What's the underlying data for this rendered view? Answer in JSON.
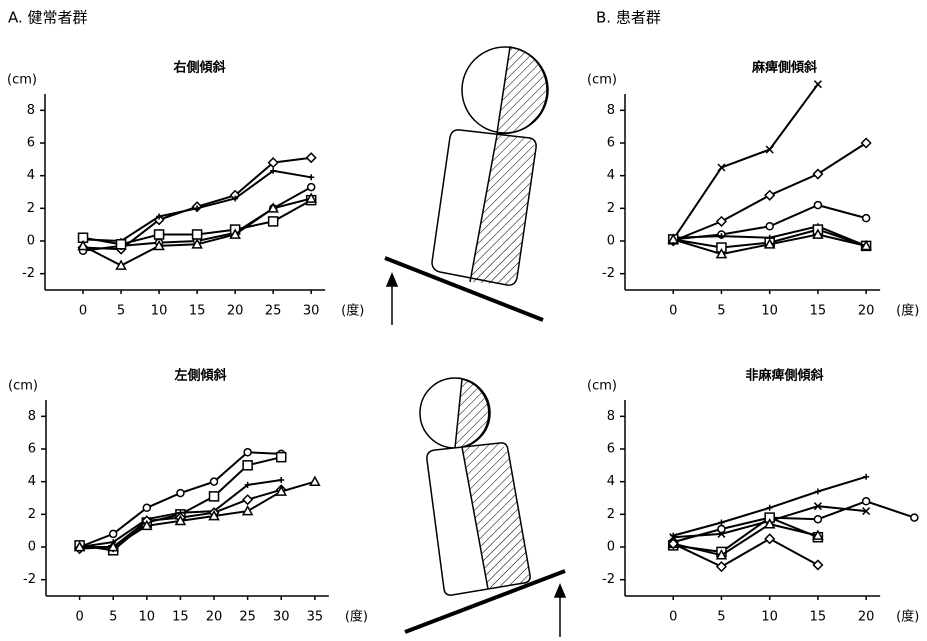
{
  "sections": [
    "A. 健常者群",
    "B. 患者群"
  ],
  "chart_data": [
    {
      "type": "line",
      "title": "右側傾斜",
      "ylabel": "(cm)",
      "xlabel": "(度)",
      "x": [
        0,
        5,
        10,
        15,
        20,
        25,
        30
      ],
      "xlim": [
        -5,
        33
      ],
      "xticks": [
        0,
        5,
        10,
        15,
        20,
        25,
        30
      ],
      "ylim": [
        -3,
        9
      ],
      "yticks": [
        -2,
        0,
        2,
        4,
        6,
        8
      ],
      "series": [
        {
          "marker": "diamond",
          "color": "#000000",
          "values": [
            -0.4,
            -0.5,
            1.3,
            2.1,
            2.8,
            4.8,
            5.1
          ]
        },
        {
          "marker": "plus",
          "color": "#000000",
          "values": [
            0.1,
            0,
            1.5,
            2.0,
            2.6,
            4.3,
            3.9
          ]
        },
        {
          "marker": "circle",
          "color": "#000000",
          "values": [
            -0.6,
            -0.3,
            -0.1,
            0,
            0.5,
            2.0,
            3.3
          ]
        },
        {
          "marker": "square",
          "color": "#000000",
          "values": [
            0.2,
            -0.2,
            0.4,
            0.4,
            0.7,
            1.2,
            2.5
          ]
        },
        {
          "marker": "triangle",
          "color": "#000000",
          "values": [
            -0.3,
            -1.5,
            -0.3,
            -0.2,
            0.4,
            2.0,
            2.6
          ]
        }
      ]
    },
    {
      "type": "line",
      "title": "麻痺側傾斜",
      "ylabel": "(cm)",
      "xlabel": "(度)",
      "x": [
        0,
        5,
        10,
        15,
        20
      ],
      "xlim": [
        -5,
        26
      ],
      "xticks": [
        0,
        5,
        10,
        15,
        20
      ],
      "ylim": [
        -3,
        9
      ],
      "yticks": [
        -2,
        0,
        2,
        4,
        6,
        8
      ],
      "series": [
        {
          "marker": "cross",
          "color": "#000000",
          "values": [
            0.1,
            4.5,
            5.6,
            9.6,
            null
          ]
        },
        {
          "marker": "diamond",
          "color": "#000000",
          "values": [
            0,
            1.2,
            2.8,
            4.1,
            6.0
          ]
        },
        {
          "marker": "circle",
          "color": "#000000",
          "values": [
            0.1,
            0.4,
            0.9,
            2.2,
            1.4
          ]
        },
        {
          "marker": "plus",
          "color": "#000000",
          "values": [
            0.2,
            0.3,
            0.2,
            0.9,
            -0.3
          ]
        },
        {
          "marker": "square",
          "color": "#000000",
          "values": [
            0.1,
            -0.4,
            -0.1,
            0.7,
            -0.3
          ]
        },
        {
          "marker": "triangle",
          "color": "#000000",
          "values": [
            0.1,
            -0.8,
            -0.2,
            0.4,
            -0.3
          ]
        }
      ]
    },
    {
      "type": "line",
      "title": "左側傾斜",
      "ylabel": "(cm)",
      "xlabel": "(度)",
      "x": [
        0,
        5,
        10,
        15,
        20,
        25,
        30,
        35
      ],
      "xlim": [
        -5,
        38
      ],
      "xticks": [
        0,
        5,
        10,
        15,
        20,
        25,
        30,
        35
      ],
      "ylim": [
        -3,
        9
      ],
      "yticks": [
        -2,
        0,
        2,
        4,
        6,
        8
      ],
      "series": [
        {
          "marker": "circle",
          "color": "#000000",
          "values": [
            0,
            0.8,
            2.4,
            3.3,
            4.0,
            5.8,
            5.7,
            null
          ]
        },
        {
          "marker": "square",
          "color": "#000000",
          "values": [
            0.1,
            -0.2,
            1.5,
            2.0,
            3.1,
            5.0,
            5.5,
            null
          ]
        },
        {
          "marker": "plus",
          "color": "#000000",
          "values": [
            0,
            0.3,
            1.7,
            2.1,
            2.2,
            3.8,
            4.1,
            null
          ]
        },
        {
          "marker": "diamond",
          "color": "#000000",
          "values": [
            -0.1,
            0,
            1.6,
            1.8,
            2.1,
            2.9,
            3.5,
            null
          ]
        },
        {
          "marker": "triangle",
          "color": "#000000",
          "values": [
            0,
            0,
            1.3,
            1.6,
            1.9,
            2.2,
            3.4,
            4.0
          ]
        }
      ]
    },
    {
      "type": "line",
      "title": "非麻痺側傾斜",
      "ylabel": "(cm)",
      "xlabel": "(度)",
      "x": [
        0,
        5,
        10,
        15,
        20,
        25
      ],
      "xlim": [
        -5,
        26
      ],
      "xticks": [
        0,
        5,
        10,
        15,
        20
      ],
      "ylim": [
        -3,
        9
      ],
      "yticks": [
        -2,
        0,
        2,
        4,
        6,
        8
      ],
      "series": [
        {
          "marker": "plus",
          "color": "#000000",
          "values": [
            0.7,
            1.5,
            2.4,
            3.4,
            4.3,
            null
          ]
        },
        {
          "marker": "cross",
          "color": "#000000",
          "values": [
            0.6,
            0.8,
            1.6,
            2.5,
            2.2,
            null
          ]
        },
        {
          "marker": "circle",
          "color": "#000000",
          "values": [
            0.3,
            1.1,
            1.8,
            1.7,
            2.8,
            1.8
          ]
        },
        {
          "marker": "square",
          "color": "#000000",
          "values": [
            0.1,
            -0.3,
            1.8,
            0.6,
            null,
            null
          ]
        },
        {
          "marker": "triangle",
          "color": "#000000",
          "values": [
            0.2,
            -0.5,
            1.4,
            0.7,
            null,
            null
          ]
        },
        {
          "marker": "diamond",
          "color": "#000000",
          "values": [
            0.2,
            -1.2,
            0.5,
            -1.1,
            null,
            null
          ]
        }
      ]
    }
  ]
}
